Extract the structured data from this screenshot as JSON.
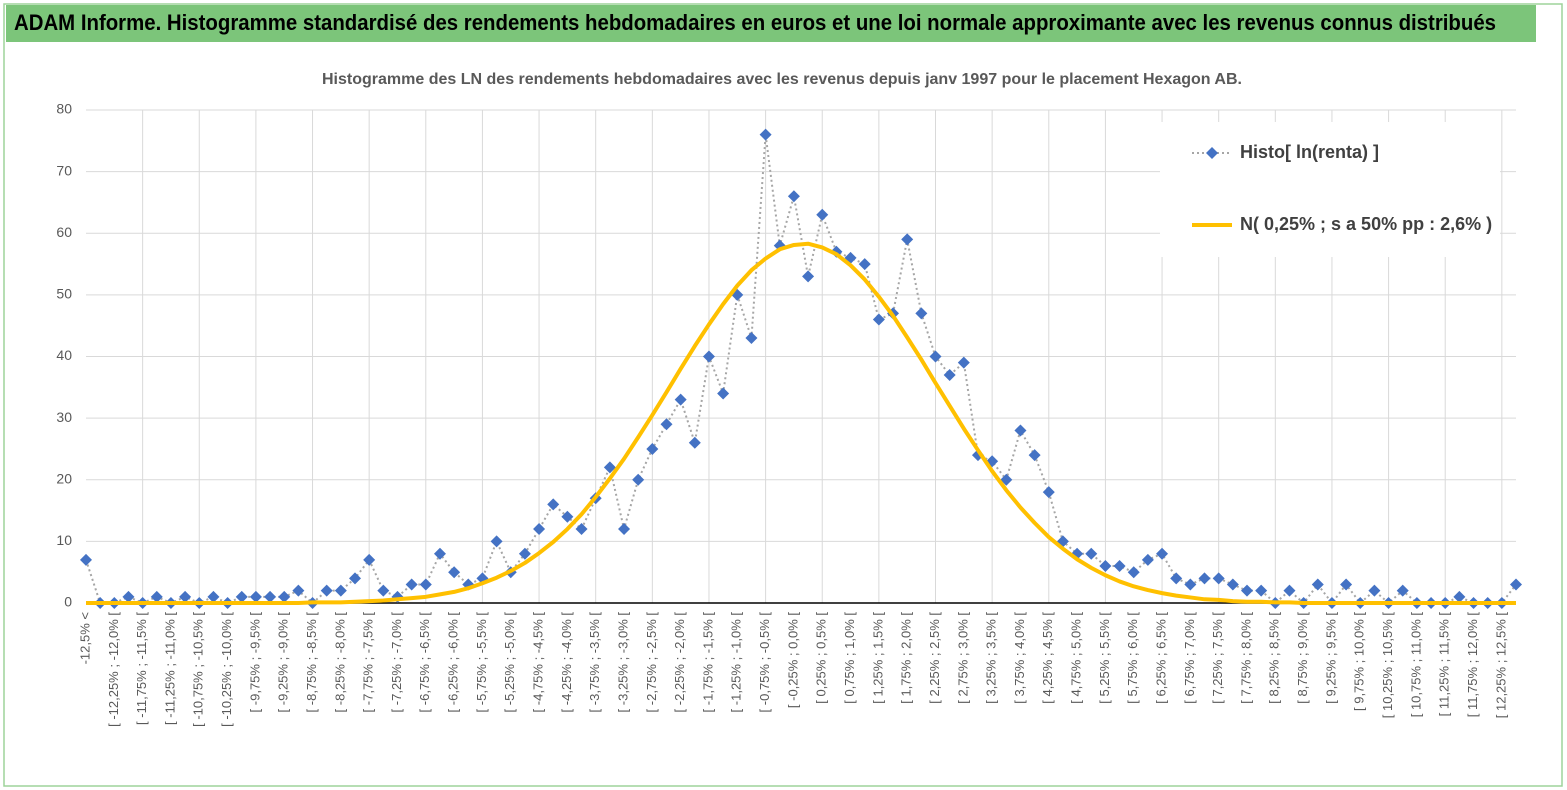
{
  "header": {
    "title": "ADAM Informe. Histogramme standardisé des rendements hebdomadaires en euros et une loi normale approximante avec les revenus connus distribués"
  },
  "chart_data": {
    "type": "line",
    "title": "Histogramme des LN des rendements hebdomadaires avec les revenus depuis janv 1997 pour le placement Hexagon AB.",
    "categories": [
      "-12,5% <",
      null,
      "[ -12,25% ; -12,0% [",
      null,
      "[ -11,75% ; -11,5% [",
      null,
      "[ -11,25% ; -11,0% [",
      null,
      "[ -10,75% ; -10,5% [",
      null,
      "[ -10,25% ; -10,0% [",
      null,
      "[ -9,75% ; -9,5% [",
      null,
      "[ -9,25% ; -9,0% [",
      null,
      "[ -8,75% ; -8,5% [",
      null,
      "[ -8,25% ; -8,0% [",
      null,
      "[ -7,75% ; -7,5% [",
      null,
      "[ -7,25% ; -7,0% [",
      null,
      "[ -6,75% ; -6,5% [",
      null,
      "[ -6,25% ; -6,0% [",
      null,
      "[ -5,75% ; -5,5% [",
      null,
      "[ -5,25% ; -5,0% [",
      null,
      "[ -4,75% ; -4,5% [",
      null,
      "[ -4,25% ; -4,0% [",
      null,
      "[ -3,75% ; -3,5% [",
      null,
      "[ -3,25% ; -3,0% [",
      null,
      "[ -2,75% ; -2,5% [",
      null,
      "[ -2,25% ; -2,0% [",
      null,
      "[ -1,75% ; -1,5% [",
      null,
      "[ -1,25% ; -1,0% [",
      null,
      "[ -0,75% ; -0,5% [",
      null,
      "[ -0,25% ; 0,0% [",
      null,
      "[ 0,25% ; 0,5% [",
      null,
      "[ 0,75% ; 1,0% [",
      null,
      "[ 1,25% ; 1,5% [",
      null,
      "[ 1,75% ; 2,0% [",
      null,
      "[ 2,25% ; 2,5% [",
      null,
      "[ 2,75% ; 3,0% [",
      null,
      "[ 3,25% ; 3,5% [",
      null,
      "[ 3,75% ; 4,0% [",
      null,
      "[ 4,25% ; 4,5% [",
      null,
      "[ 4,75% ; 5,0% [",
      null,
      "[ 5,25% ; 5,5% [",
      null,
      "[ 5,75% ; 6,0% [",
      null,
      "[ 6,25% ; 6,5% [",
      null,
      "[ 6,75% ; 7,0% [",
      null,
      "[ 7,25% ; 7,5% [",
      null,
      "[ 7,75% ; 8,0% [",
      null,
      "[ 8,25% ; 8,5% [",
      null,
      "[ 8,75% ; 9,0% [",
      null,
      "[ 9,25% ; 9,5% [",
      null,
      "[ 9,75% ; 10,0% [",
      null,
      "[ 10,25% ; 10,5% [",
      null,
      "[ 10,75% ; 11,0% [",
      null,
      "[ 11,25% ; 11,5% [",
      null,
      "[ 11,75% ; 12,0% [",
      null,
      "[ 12,25% ; 12,5% [",
      null
    ],
    "series": [
      {
        "name": "Histo[ ln(renta) ]",
        "color": "#4472c4",
        "line_color": "#a6a6a6",
        "line_style": "dotted",
        "marker": "diamond",
        "values": [
          7,
          0,
          0,
          1,
          0,
          1,
          0,
          1,
          0,
          1,
          0,
          1,
          1,
          1,
          1,
          2,
          0,
          2,
          2,
          4,
          7,
          2,
          1,
          3,
          3,
          8,
          5,
          3,
          4,
          10,
          5,
          8,
          12,
          16,
          14,
          12,
          17,
          22,
          12,
          20,
          25,
          29,
          33,
          26,
          40,
          34,
          50,
          43,
          76,
          58,
          66,
          53,
          63,
          57,
          56,
          55,
          46,
          47,
          59,
          47,
          40,
          37,
          39,
          24,
          23,
          20,
          28,
          24,
          18,
          10,
          8,
          8,
          6,
          6,
          5,
          7,
          8,
          4,
          3,
          4,
          4,
          3,
          2,
          2,
          0,
          2,
          0,
          3,
          0,
          3,
          0,
          2,
          0,
          2,
          0,
          0,
          0,
          1,
          0,
          0,
          0,
          3
        ]
      },
      {
        "name": "N( 0,25% ; s a 50% pp : 2,6% )",
        "color": "#ffc000",
        "line_style": "solid",
        "values": [
          0,
          0,
          0,
          0,
          0,
          0,
          0,
          0,
          0,
          0,
          0,
          0,
          0,
          0,
          0,
          0,
          0.1,
          0.1,
          0.1,
          0.2,
          0.3,
          0.4,
          0.6,
          0.8,
          1.0,
          1.4,
          1.8,
          2.4,
          3.2,
          4.1,
          5.2,
          6.5,
          8.1,
          9.9,
          12.0,
          14.4,
          17.2,
          20.2,
          23.4,
          26.9,
          30.5,
          34.2,
          38.0,
          41.7,
          45.2,
          48.5,
          51.5,
          54.0,
          55.9,
          57.4,
          58.1,
          58.3,
          57.7,
          56.6,
          54.8,
          52.5,
          49.7,
          46.6,
          43.1,
          39.5,
          35.7,
          32.0,
          28.3,
          24.8,
          21.4,
          18.3,
          15.5,
          13.0,
          10.7,
          8.8,
          7.1,
          5.7,
          4.5,
          3.5,
          2.7,
          2.1,
          1.6,
          1.2,
          0.9,
          0.6,
          0.5,
          0.3,
          0.2,
          0.2,
          0.1,
          0.1,
          0,
          0,
          0,
          0,
          0,
          0,
          0,
          0,
          0,
          0,
          0,
          0,
          0,
          0,
          0,
          0
        ]
      }
    ],
    "ylim": [
      0,
      80
    ],
    "yticks": [
      0,
      10,
      20,
      30,
      40,
      50,
      60,
      70,
      80
    ],
    "grid": true,
    "legend": "top-right"
  }
}
